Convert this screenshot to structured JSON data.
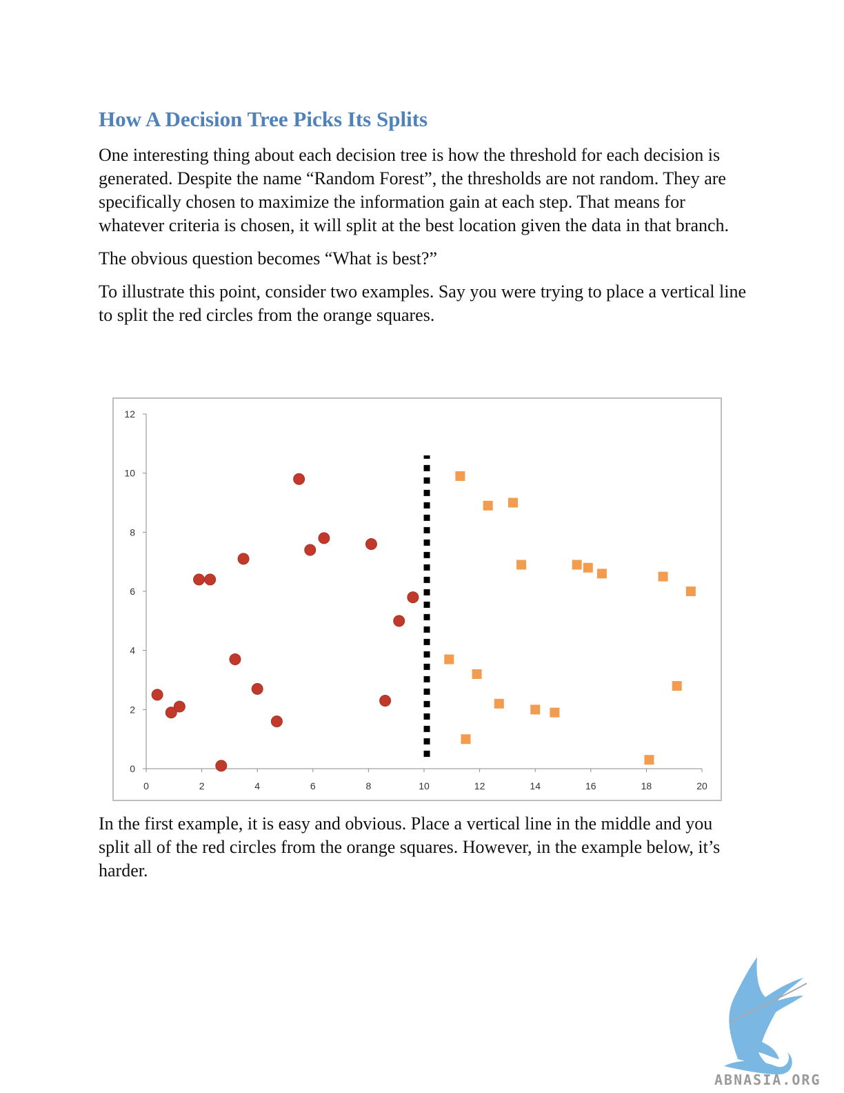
{
  "heading": "How A Decision Tree Picks Its Splits",
  "paragraphs": [
    "One interesting thing about each decision tree is how the threshold for each decision is generated.  Despite the name “Random Forest”, the thresholds are not random.   They are specifically chosen to maximize the information gain at each step.  That means for whatever criteria is chosen, it will split at the best location given the data in that branch.",
    "The obvious question becomes “What is best?”",
    "To illustrate this point, consider two examples.  Say you were trying to place a vertical line to split the red circles from the orange squares."
  ],
  "after_paragraph": "In the first example, it is easy and obvious.  Place a vertical line in the middle and you split all of the red circles from the orange squares.  However, in the example below, it’s harder.",
  "logo_text": "ABNASIA.ORG",
  "chart_data": {
    "type": "scatter",
    "xlim": [
      0,
      20
    ],
    "ylim": [
      0,
      12
    ],
    "xticks": [
      0,
      2,
      4,
      6,
      8,
      10,
      12,
      14,
      16,
      18,
      20
    ],
    "yticks": [
      0,
      2,
      4,
      6,
      8,
      10,
      12
    ],
    "grid": false,
    "split_line_x": 10.1,
    "split_line_ymax": 10.6,
    "series": [
      {
        "marker": "circle",
        "color": "#c0392b",
        "points": [
          [
            0.4,
            2.5
          ],
          [
            0.9,
            1.9
          ],
          [
            1.2,
            2.1
          ],
          [
            1.9,
            6.4
          ],
          [
            2.3,
            6.4
          ],
          [
            2.7,
            0.1
          ],
          [
            3.2,
            3.7
          ],
          [
            3.5,
            7.1
          ],
          [
            4.0,
            2.7
          ],
          [
            4.7,
            1.6
          ],
          [
            5.5,
            9.8
          ],
          [
            5.9,
            7.4
          ],
          [
            6.4,
            7.8
          ],
          [
            8.1,
            7.6
          ],
          [
            8.6,
            2.3
          ],
          [
            9.1,
            5.0
          ],
          [
            9.6,
            5.8
          ]
        ]
      },
      {
        "marker": "square",
        "color": "#f39c4f",
        "points": [
          [
            10.9,
            3.7
          ],
          [
            11.3,
            9.9
          ],
          [
            11.5,
            1.0
          ],
          [
            11.9,
            3.2
          ],
          [
            12.3,
            8.9
          ],
          [
            12.7,
            2.2
          ],
          [
            13.2,
            9.0
          ],
          [
            13.5,
            6.9
          ],
          [
            14.0,
            2.0
          ],
          [
            14.7,
            1.9
          ],
          [
            15.5,
            6.9
          ],
          [
            15.9,
            6.8
          ],
          [
            16.4,
            6.6
          ],
          [
            18.1,
            0.3
          ],
          [
            18.6,
            6.5
          ],
          [
            19.1,
            2.8
          ],
          [
            19.6,
            6.0
          ]
        ]
      }
    ]
  }
}
